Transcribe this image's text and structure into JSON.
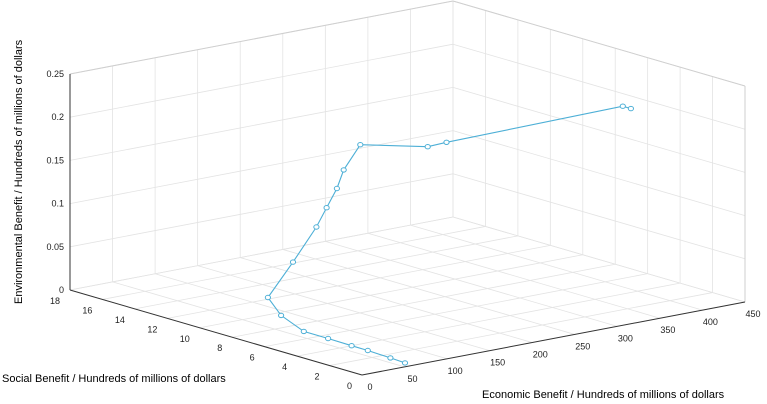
{
  "chart_data": {
    "type": "line3d",
    "title": "",
    "xlabel": "Economic Benefit / Hundreds of millions of dollars",
    "ylabel": "Social Benefit / Hundreds of millions of dollars",
    "zlabel": "Environmental Benefit / Hundreds of millions of dollars",
    "xlim": [
      0,
      450
    ],
    "ylim": [
      0,
      18
    ],
    "zlim": [
      0,
      0.25
    ],
    "xticks": [
      "0",
      "50",
      "100",
      "150",
      "200",
      "250",
      "300",
      "350",
      "400",
      "450"
    ],
    "yticks": [
      "0",
      "2",
      "4",
      "6",
      "8",
      "10",
      "12",
      "14",
      "16",
      "18"
    ],
    "zticks": [
      "0",
      "0.05",
      "0.1",
      "0.15",
      "0.2",
      "0.25"
    ],
    "grid": true,
    "series": [
      {
        "name": "",
        "color": "#4DAFD6",
        "marker": "circle",
        "x": [
          60,
          62,
          64,
          64,
          65,
          65,
          67,
          80,
          100,
          118,
          130,
          142,
          150,
          160,
          182,
          185,
          335,
          335
        ],
        "y": [
          0.5,
          1.5,
          3,
          4,
          5.5,
          7,
          8.5,
          10,
          9.5,
          9,
          9,
          9,
          9,
          8.5,
          5.5,
          4.5,
          1.5,
          1.0
        ],
        "z": [
          0.0,
          0.0,
          0.0,
          0.0,
          0.0,
          0.0,
          0.01,
          0.02,
          0.06,
          0.1,
          0.12,
          0.14,
          0.16,
          0.19,
          0.2,
          0.21,
          0.24,
          0.24
        ]
      }
    ]
  }
}
